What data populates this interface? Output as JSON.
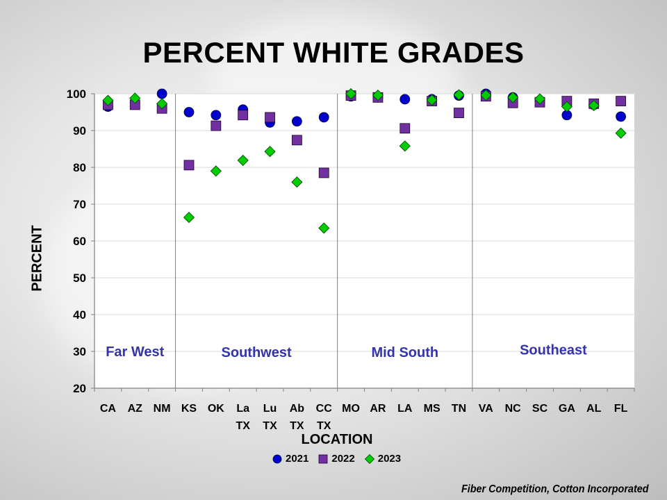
{
  "colors": {
    "s2021": "#0000CC",
    "s2022": "#7030A0",
    "s2023": "#00CC00",
    "region_label": "#3333AA",
    "plot_bg": "#FFFFFF",
    "gridline": "#D9D9D9"
  },
  "chart_data": {
    "type": "scatter",
    "title": "PERCENT WHITE GRADES",
    "xlabel": "LOCATION",
    "ylabel": "PERCENT",
    "ylim": [
      20,
      100
    ],
    "yticks": [
      20,
      30,
      40,
      50,
      60,
      70,
      80,
      90,
      100
    ],
    "categories": [
      {
        "line1": "CA",
        "line2": ""
      },
      {
        "line1": "AZ",
        "line2": ""
      },
      {
        "line1": "NM",
        "line2": ""
      },
      {
        "line1": "KS",
        "line2": ""
      },
      {
        "line1": "OK",
        "line2": ""
      },
      {
        "line1": "La",
        "line2": "TX"
      },
      {
        "line1": "Lu",
        "line2": "TX"
      },
      {
        "line1": "Ab",
        "line2": "TX"
      },
      {
        "line1": "CC",
        "line2": "TX"
      },
      {
        "line1": "MO",
        "line2": ""
      },
      {
        "line1": "AR",
        "line2": ""
      },
      {
        "line1": "LA",
        "line2": ""
      },
      {
        "line1": "MS",
        "line2": ""
      },
      {
        "line1": "TN",
        "line2": ""
      },
      {
        "line1": "VA",
        "line2": ""
      },
      {
        "line1": "NC",
        "line2": ""
      },
      {
        "line1": "SC",
        "line2": ""
      },
      {
        "line1": "GA",
        "line2": ""
      },
      {
        "line1": "AL",
        "line2": ""
      },
      {
        "line1": "FL",
        "line2": ""
      }
    ],
    "series": [
      {
        "name": "2021",
        "marker": "circle",
        "values": [
          96.5,
          97.5,
          100,
          95,
          94.2,
          95.7,
          92.2,
          92.5,
          93.6,
          99.3,
          99,
          98.5,
          98.5,
          99.5,
          100,
          99,
          98,
          94.2,
          97,
          93.8
        ]
      },
      {
        "name": "2022",
        "marker": "square",
        "values": [
          97,
          97,
          96,
          80.6,
          91.3,
          94.2,
          93.6,
          87.4,
          78.5,
          99.5,
          99,
          90.6,
          98,
          94.8,
          99.3,
          97.5,
          97.7,
          98,
          97.3,
          98
        ]
      },
      {
        "name": "2023",
        "marker": "diamond",
        "values": [
          98.2,
          98.8,
          97.3,
          66.4,
          79,
          81.9,
          84.3,
          76,
          63.5,
          100,
          99.6,
          85.8,
          98.3,
          99.7,
          99.6,
          99,
          98.6,
          96.5,
          96.8,
          89.3
        ]
      }
    ],
    "region_dividers_after_index": [
      2,
      8,
      13
    ],
    "regions": [
      {
        "label": "Far West",
        "value_level": 30
      },
      {
        "label": "Southwest",
        "value_level": 29.8
      },
      {
        "label": "Mid South",
        "value_level": 29.8
      },
      {
        "label": "Southeast",
        "value_level": 30.5
      }
    ],
    "legend": [
      "2021",
      "2022",
      "2023"
    ],
    "legend_position": "bottom",
    "grid": true
  },
  "source_note": "Fiber Competition, Cotton Incorporated"
}
